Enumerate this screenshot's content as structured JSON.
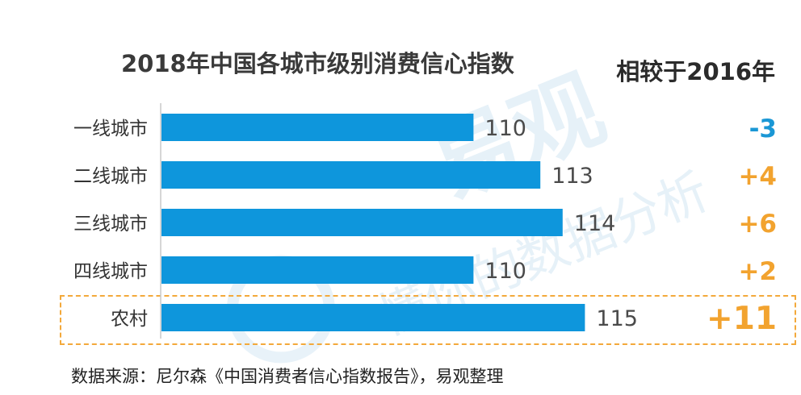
{
  "chart_data": {
    "type": "bar",
    "orientation": "horizontal",
    "title": "2018年中国各城市级别消费信心指数",
    "categories": [
      "一线城市",
      "二线城市",
      "三线城市",
      "四线城市",
      "农村"
    ],
    "values": [
      110,
      113,
      114,
      110,
      115
    ],
    "xlim": [
      96,
      120
    ],
    "bar_color": "#0e96dc",
    "comparison": {
      "header": "相较于2016年",
      "values": [
        "-3",
        "+4",
        "+6",
        "+2",
        "+11"
      ],
      "colors": [
        "#1a97d5",
        "#f2a32f",
        "#f2a32f",
        "#f2a32f",
        "#f2a32f"
      ]
    },
    "highlighted_category": "农村",
    "highlight_color": "#f3a93b"
  },
  "source": "数据来源：尼尔森《中国消费者信心指数报告》，易观整理",
  "watermark": {
    "brand": "易观",
    "tagline": "懂你的数据分析",
    "color": "#e6f1f8"
  }
}
